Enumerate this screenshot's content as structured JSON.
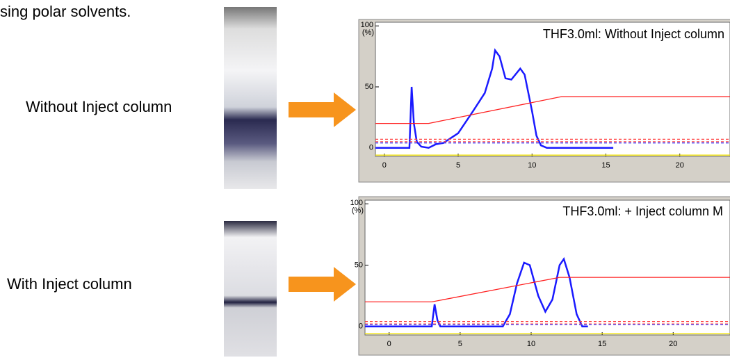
{
  "caption": "sing polar solvents.",
  "labels": [
    "Without Inject column",
    "With Inject column"
  ],
  "chart_data": [
    {
      "type": "line",
      "title": "THF3.0ml: Without Inject column",
      "ylabel": "(%)",
      "xlim": [
        -0.6,
        23.4
      ],
      "ylim": [
        -7,
        103
      ],
      "xticks": [
        0,
        5,
        10,
        15,
        20
      ],
      "yticks": [
        0,
        50,
        100
      ],
      "series": [
        {
          "color": "#1a1aff",
          "x": [
            -0.6,
            1.7,
            1.85,
            2.0,
            2.2,
            2.5,
            3,
            3.5,
            4,
            5,
            6,
            6.8,
            7.3,
            7.5,
            7.8,
            8.2,
            8.6,
            9.2,
            9.5,
            10,
            10.3,
            10.6,
            11,
            15.5
          ],
          "values": [
            0,
            0,
            50,
            20,
            5,
            1,
            0,
            3,
            4,
            12,
            30,
            45,
            65,
            80,
            75,
            57,
            56,
            65,
            60,
            30,
            10,
            2,
            0,
            0
          ]
        },
        {
          "color": "#ff2020",
          "x": [
            -0.6,
            3,
            12,
            23.4
          ],
          "values": [
            20,
            20,
            42,
            42
          ]
        },
        {
          "color": "#ff4040",
          "dash": true,
          "x": [
            -0.6,
            23.4
          ],
          "values": [
            7,
            7
          ]
        },
        {
          "color": "#ff4040",
          "dash": true,
          "x": [
            -0.6,
            23.4
          ],
          "values": [
            5,
            5
          ]
        },
        {
          "color": "#4040ff",
          "dash": true,
          "x": [
            -0.6,
            23.4
          ],
          "values": [
            4,
            4
          ]
        },
        {
          "color": "#f0e000",
          "x": [
            -0.6,
            23.4
          ],
          "values": [
            -6,
            -6
          ]
        }
      ]
    },
    {
      "type": "line",
      "title": "THF3.0ml: + Inject column M",
      "ylabel": "(%)",
      "xlim": [
        -1.7,
        24
      ],
      "ylim": [
        -7,
        103
      ],
      "xticks": [
        0,
        5,
        10,
        15,
        20
      ],
      "yticks": [
        0,
        50,
        100
      ],
      "series": [
        {
          "color": "#1a1aff",
          "x": [
            -1.7,
            3,
            3.2,
            3.4,
            3.6,
            8,
            8.5,
            9,
            9.5,
            9.9,
            10.5,
            11,
            11.5,
            12,
            12.3,
            12.7,
            13.2,
            13.6,
            14
          ],
          "values": [
            0,
            0,
            18,
            5,
            0,
            0,
            10,
            35,
            52,
            50,
            25,
            12,
            22,
            50,
            55,
            40,
            10,
            0,
            0
          ]
        },
        {
          "color": "#ff2020",
          "x": [
            -1.7,
            3,
            12,
            24
          ],
          "values": [
            20,
            20,
            40,
            40
          ]
        },
        {
          "color": "#ff4040",
          "dash": true,
          "x": [
            -1.7,
            24
          ],
          "values": [
            4,
            4
          ]
        },
        {
          "color": "#ff4040",
          "dash": true,
          "x": [
            -1.7,
            24
          ],
          "values": [
            2,
            2
          ]
        },
        {
          "color": "#4040ff",
          "dash": true,
          "x": [
            -1.7,
            24
          ],
          "values": [
            1.5,
            1.5
          ]
        },
        {
          "color": "#f0e000",
          "x": [
            -1.7,
            24
          ],
          "values": [
            -6,
            -6
          ]
        }
      ]
    }
  ]
}
